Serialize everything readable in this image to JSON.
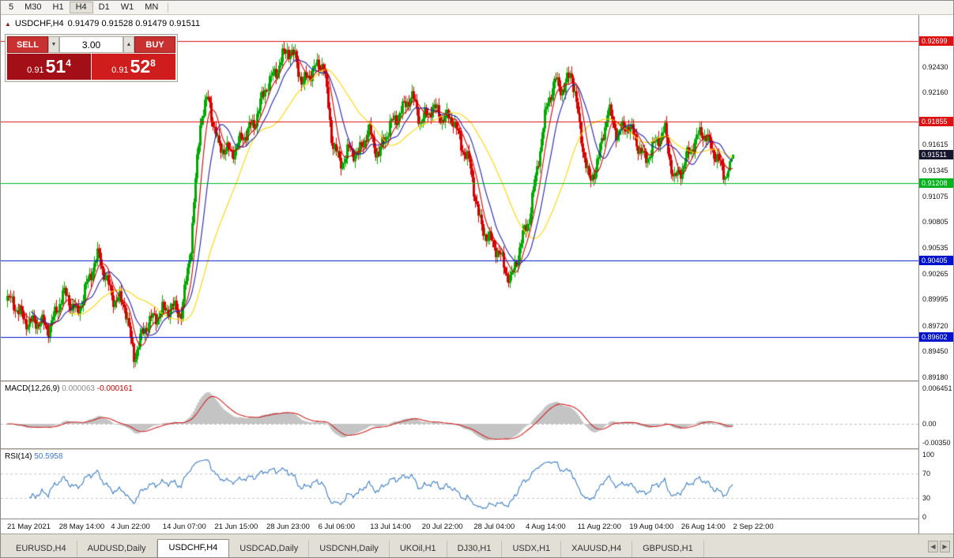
{
  "toolbar": {
    "timeframes": [
      "5",
      "M30",
      "H1",
      "H4",
      "D1",
      "W1",
      "MN"
    ],
    "active": "H4"
  },
  "icons": {
    "chart_icon": "▲",
    "spin_down": "▼",
    "spin_up": "▲",
    "scroll_left": "◀",
    "scroll_right": "▶"
  },
  "chart": {
    "symbol_title": "USDCHF,H4",
    "ohlc": "0.91479 0.91528 0.91479 0.91511",
    "trade_panel": {
      "sell_label": "SELL",
      "buy_label": "BUY",
      "volume": "3.00",
      "sell_price_prefix": "0.91",
      "sell_price_big": "51",
      "sell_price_sup": "4",
      "buy_price_prefix": "0.91",
      "buy_price_big": "52",
      "buy_price_sup": "8"
    },
    "levels": [
      {
        "price": 0.92699,
        "color": "#dd1111"
      },
      {
        "price": 0.91855,
        "color": "#dd1111"
      },
      {
        "price": 0.91208,
        "color": "#00bb22"
      },
      {
        "price": 0.90405,
        "color": "#0013cc"
      },
      {
        "price": 0.89602,
        "color": "#0013cc"
      }
    ],
    "current_price": {
      "label": "0.91511",
      "price": 0.91511
    },
    "price_axis": {
      "ticks": [
        {
          "label": "0.92699",
          "price": 0.92699,
          "badge": "red"
        },
        {
          "label": "0.92430",
          "price": 0.9243
        },
        {
          "label": "0.92160",
          "price": 0.9216
        },
        {
          "label": "0.91855",
          "price": 0.91855,
          "badge": "red"
        },
        {
          "label": "0.91615",
          "price": 0.91615
        },
        {
          "label": "0.91511",
          "price": 0.91511,
          "badge": "dark"
        },
        {
          "label": "0.91345",
          "price": 0.91345
        },
        {
          "label": "0.91208",
          "price": 0.91208,
          "badge": "green"
        },
        {
          "label": "0.91075",
          "price": 0.91075
        },
        {
          "label": "0.90805",
          "price": 0.90805
        },
        {
          "label": "0.90535",
          "price": 0.90535
        },
        {
          "label": "0.90405",
          "price": 0.90405,
          "badge": "blue"
        },
        {
          "label": "0.90265",
          "price": 0.90265
        },
        {
          "label": "0.89995",
          "price": 0.89995
        },
        {
          "label": "0.89720",
          "price": 0.8972
        },
        {
          "label": "0.89602",
          "price": 0.89602,
          "badge": "blue"
        },
        {
          "label": "0.89450",
          "price": 0.8945
        },
        {
          "label": "0.89180",
          "price": 0.8918
        }
      ]
    }
  },
  "macd": {
    "name": "MACD(12,26,9)",
    "value1": "0.000063",
    "value2": "-0.000161",
    "axis": [
      {
        "label": "0.006451",
        "value": 0.006451
      },
      {
        "label": "0.00",
        "value": 0
      },
      {
        "label": "-0.00350",
        "value": -0.0035
      }
    ]
  },
  "rsi": {
    "name": "RSI(14)",
    "value": "50.5958",
    "axis": [
      {
        "label": "100",
        "value": 100
      },
      {
        "label": "70",
        "value": 70
      },
      {
        "label": "30",
        "value": 30
      },
      {
        "label": "0",
        "value": 0
      }
    ]
  },
  "time_axis": {
    "labels": [
      "21 May 2021",
      "28 May 14:00",
      "4 Jun 22:00",
      "14 Jun 07:00",
      "21 Jun 15:00",
      "28 Jun 23:00",
      "6 Jul 06:00",
      "13 Jul 14:00",
      "20 Jul 22:00",
      "28 Jul 04:00",
      "4 Aug 14:00",
      "11 Aug 22:00",
      "19 Aug 04:00",
      "26 Aug 14:00",
      "2 Sep 22:00"
    ]
  },
  "tabs": {
    "items": [
      "EURUSD,H4",
      "AUDUSD,Daily",
      "USDCHF,H4",
      "USDCAD,Daily",
      "USDCNH,Daily",
      "UKOil,H1",
      "DJ30,H1",
      "USDX,H1",
      "XAUUSD,H4",
      "GBPUSD,H1"
    ],
    "active_index": 2
  },
  "chart_data": {
    "type": "candlestick",
    "symbol": "USDCHF",
    "timeframe": "H4",
    "bars": 460,
    "price_range": [
      0.8916,
      0.9297
    ],
    "colors": {
      "up": "#00A800",
      "down": "#D80000",
      "macd_hist": "#c4c4c4",
      "macd_signal": "#cc2222",
      "rsi_line": "#3E7EC1"
    },
    "ma": [
      {
        "name": "slow",
        "period": 40,
        "color": "#FFD400"
      },
      {
        "name": "mid",
        "period": 16,
        "color": "#2323AA"
      },
      {
        "name": "fast",
        "period": 8,
        "color": "#CC0000"
      }
    ],
    "macd_params": [
      12,
      26,
      9
    ],
    "rsi_period": 14,
    "price_path": [
      [
        0.0,
        0.8998
      ],
      [
        0.031,
        0.8976
      ],
      [
        0.056,
        0.897
      ],
      [
        0.076,
        0.9003
      ],
      [
        0.096,
        0.8988
      ],
      [
        0.126,
        0.9046
      ],
      [
        0.147,
        0.8998
      ],
      [
        0.162,
        0.8993
      ],
      [
        0.174,
        0.8942
      ],
      [
        0.193,
        0.8972
      ],
      [
        0.212,
        0.899
      ],
      [
        0.24,
        0.8986
      ],
      [
        0.253,
        0.906
      ],
      [
        0.266,
        0.9185
      ],
      [
        0.277,
        0.9212
      ],
      [
        0.291,
        0.916
      ],
      [
        0.307,
        0.915
      ],
      [
        0.324,
        0.9172
      ],
      [
        0.34,
        0.918
      ],
      [
        0.356,
        0.9225
      ],
      [
        0.373,
        0.924
      ],
      [
        0.386,
        0.9262
      ],
      [
        0.397,
        0.9255
      ],
      [
        0.407,
        0.9222
      ],
      [
        0.422,
        0.924
      ],
      [
        0.435,
        0.9252
      ],
      [
        0.447,
        0.9165
      ],
      [
        0.458,
        0.914
      ],
      [
        0.471,
        0.916
      ],
      [
        0.484,
        0.9148
      ],
      [
        0.498,
        0.9178
      ],
      [
        0.512,
        0.9152
      ],
      [
        0.527,
        0.9178
      ],
      [
        0.541,
        0.9198
      ],
      [
        0.556,
        0.9212
      ],
      [
        0.569,
        0.9185
      ],
      [
        0.585,
        0.9203
      ],
      [
        0.599,
        0.9186
      ],
      [
        0.614,
        0.9192
      ],
      [
        0.626,
        0.916
      ],
      [
        0.638,
        0.9135
      ],
      [
        0.65,
        0.9085
      ],
      [
        0.665,
        0.906
      ],
      [
        0.678,
        0.9045
      ],
      [
        0.694,
        0.9022
      ],
      [
        0.705,
        0.9048
      ],
      [
        0.719,
        0.9085
      ],
      [
        0.732,
        0.915
      ],
      [
        0.745,
        0.9205
      ],
      [
        0.756,
        0.9228
      ],
      [
        0.767,
        0.9222
      ],
      [
        0.777,
        0.9238
      ],
      [
        0.789,
        0.9175
      ],
      [
        0.802,
        0.9125
      ],
      [
        0.815,
        0.9145
      ],
      [
        0.828,
        0.9198
      ],
      [
        0.841,
        0.9175
      ],
      [
        0.854,
        0.918
      ],
      [
        0.867,
        0.9165
      ],
      [
        0.879,
        0.9148
      ],
      [
        0.892,
        0.9158
      ],
      [
        0.906,
        0.9178
      ],
      [
        0.919,
        0.9125
      ],
      [
        0.931,
        0.9135
      ],
      [
        0.944,
        0.9162
      ],
      [
        0.956,
        0.9178
      ],
      [
        0.968,
        0.9158
      ],
      [
        0.98,
        0.9145
      ],
      [
        0.991,
        0.913
      ],
      [
        1.0,
        0.9151
      ]
    ]
  }
}
